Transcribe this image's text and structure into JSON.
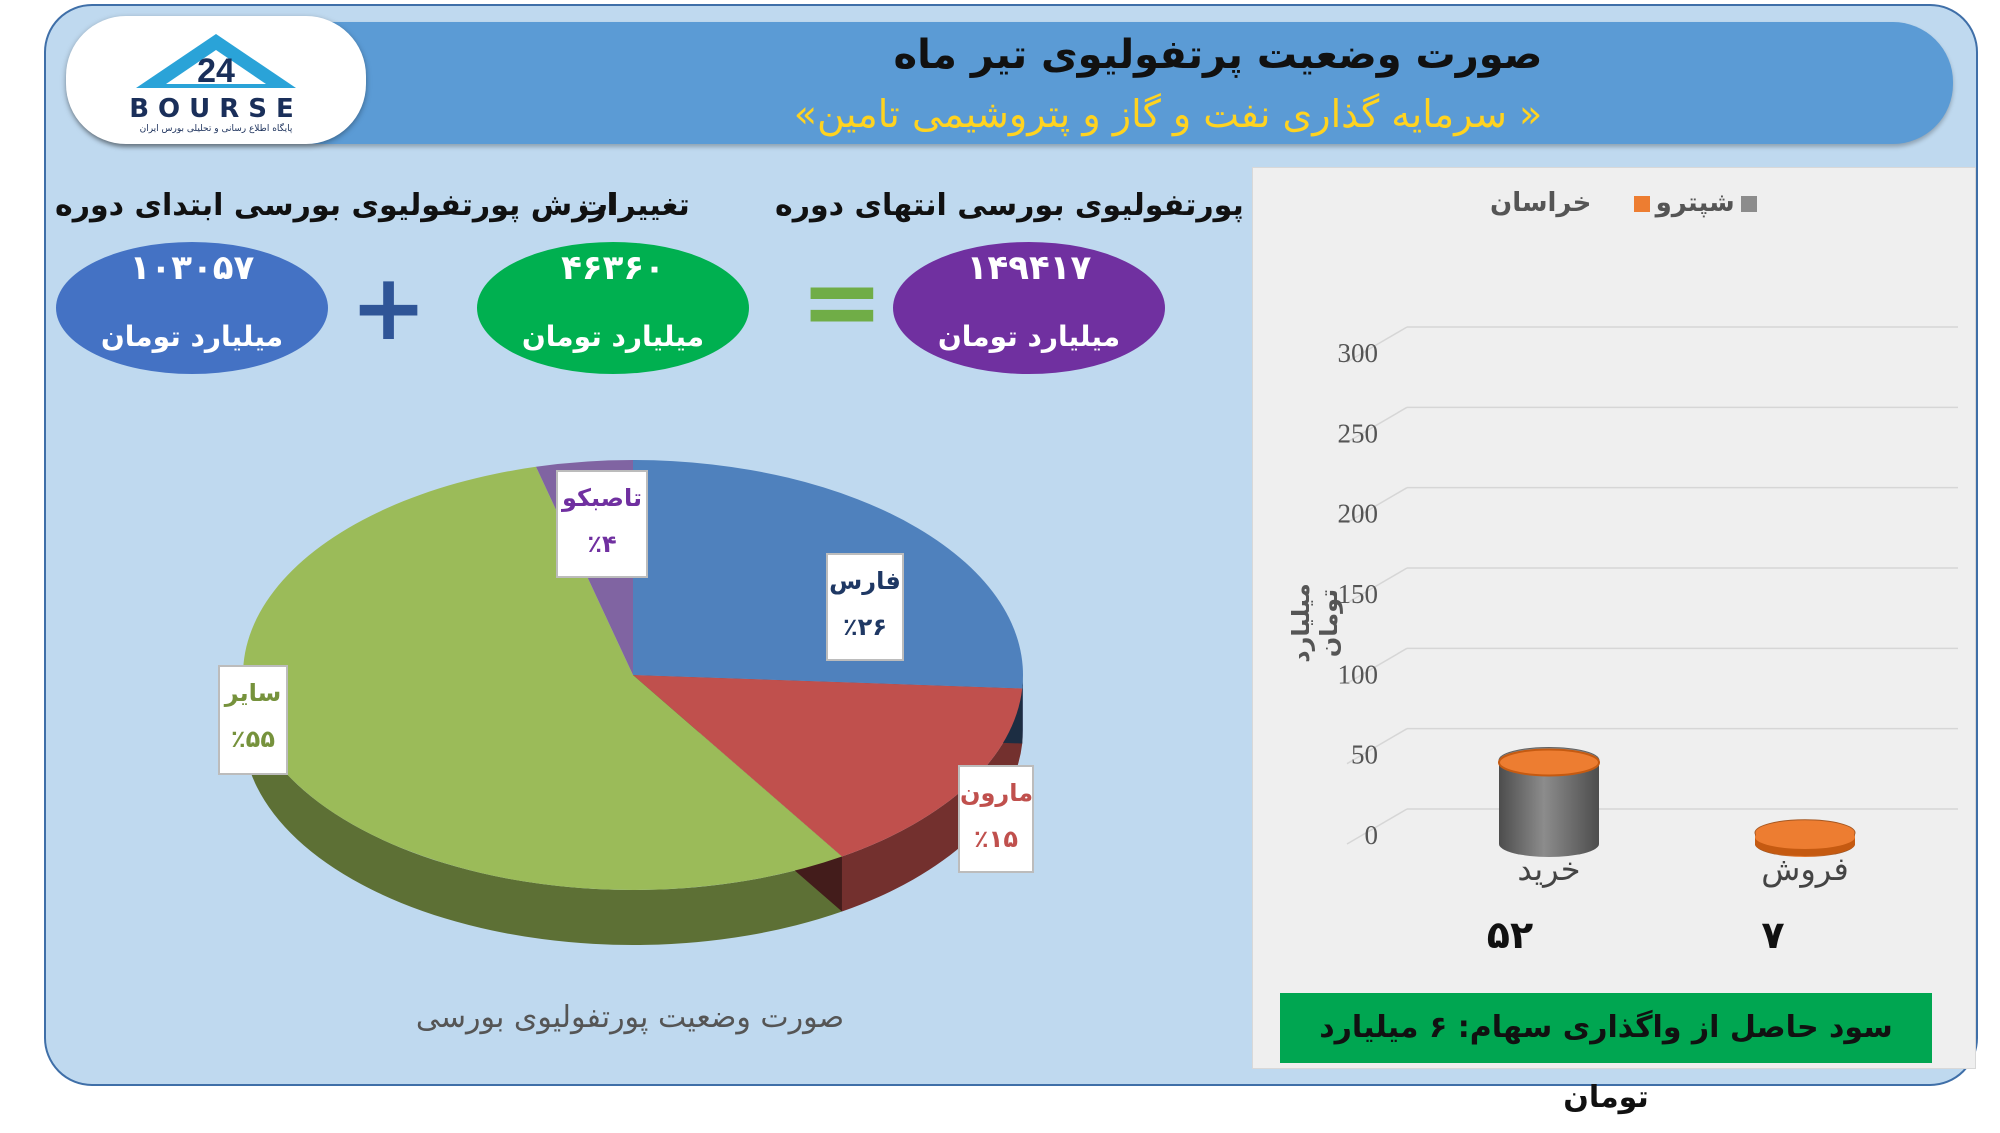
{
  "header": {
    "title": "صورت وضعیت پرتفولیوی تیر ماه",
    "subtitle": "«سرمایه گذاری نفت و گاز و پتروشیمی تامین »",
    "logo_text": "BOURSE",
    "logo_number": "24",
    "logo_caption": "پایگاه اطلاع رسانی و تحلیلی بورس ایران"
  },
  "summary": {
    "start": {
      "label": "ارزش پورتفولیوی بورسی ابتدای دوره",
      "value": "۱۰۳۰۵۷",
      "unit": "میلیارد تومان",
      "color": "#4472c4"
    },
    "change": {
      "label": "تغییرات",
      "value": "۴۶۳۶۰",
      "unit": "میلیارد تومان",
      "color": "#00b050"
    },
    "end": {
      "label": "ارزش پورتفولیوی بورسی انتهای دوره",
      "value": "۱۴۹۴۱۷",
      "unit": "میلیارد تومان",
      "color": "#7030a0"
    },
    "plus_sign": "+",
    "equals_sign": "="
  },
  "pie_caption": "صورت وضعیت پورتفولیوی بورسی",
  "profit_note": "سود حاصل از واگذاری سهام: ۶ میلیارد تومان",
  "chart_data": [
    {
      "type": "pie",
      "title": "صورت وضعیت پورتفولیوی بورسی",
      "slices": [
        {
          "label": "فارس",
          "value": 26,
          "display": "٪۲۶",
          "color": "#4f81bd",
          "text_color": "#1f3864"
        },
        {
          "label": "مارون",
          "value": 15,
          "display": "٪۱۵",
          "color": "#c0504d",
          "text_color": "#c0504d"
        },
        {
          "label": "سایر",
          "value": 55,
          "display": "٪۵۵",
          "color": "#9bbb59",
          "text_color": "#76923c"
        },
        {
          "label": "تاصبکو",
          "value": 4,
          "display": "٪۴",
          "color": "#8064a2",
          "text_color": "#7030a0"
        }
      ]
    },
    {
      "type": "bar",
      "ylabel": "میلیارد تومان",
      "ylim": [
        0,
        300
      ],
      "yticks": [
        0,
        50,
        100,
        150,
        200,
        250,
        300
      ],
      "grid": true,
      "legend_position": "top",
      "categories": [
        "خرید",
        "فروش"
      ],
      "totals": [
        "۵۲",
        "۷"
      ],
      "series": [
        {
          "name": "خراسان",
          "color": "#8c8c8c",
          "values": [
            52,
            0
          ]
        },
        {
          "name": "شپترو",
          "color": "#ed7d31",
          "values": [
            0,
            7
          ]
        }
      ]
    }
  ]
}
